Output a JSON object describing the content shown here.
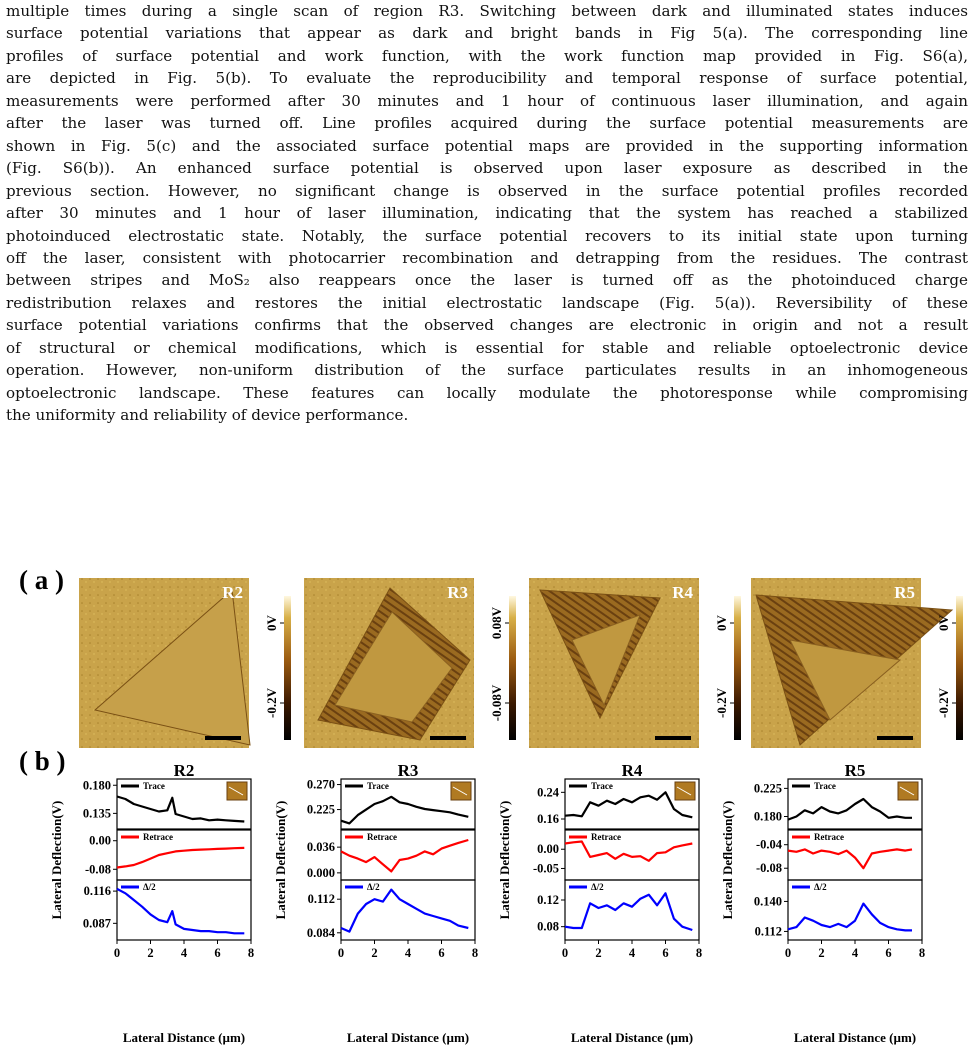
{
  "paragraph_lines": [
    "multiple times during a single scan of region R3. Switching between dark and illuminated states induces",
    "surface potential variations that appear as dark and bright bands in Fig 5(a). The corresponding line",
    "profiles of surface potential and work function, with the work function map provided in Fig. S6(a),",
    "are depicted in Fig. 5(b). To evaluate the reproducibility and temporal response of surface potential,",
    "measurements were performed after 30 minutes and 1 hour of continuous laser illumination, and again",
    "after the laser was turned off. Line profiles acquired during the surface potential measurements are",
    "shown in Fig. 5(c) and the associated surface potential maps are provided in the supporting information",
    "(Fig. S6(b)). An enhanced surface potential is observed upon laser exposure as described in the",
    "previous section. However, no significant change is observed in the surface potential profiles recorded",
    "after 30 minutes and 1 hour of laser illumination, indicating that the system has reached a stabilized",
    "photoinduced electrostatic state. Notably, the surface potential recovers to its initial state upon turning",
    "off the laser, consistent with photocarrier recombination and detrapping from the residues. The contrast",
    "between stripes and MoS₂ also reappears once the laser is turned off as the photoinduced charge",
    "redistribution relaxes and restores the initial electrostatic landscape (Fig. 5(a)). Reversibility of these",
    "surface potential variations confirms that the observed changes are electronic in origin and not a result",
    "of structural or chemical modifications, which is essential for stable and reliable optoelectronic device",
    "operation. However, non-uniform distribution of the surface particulates results in an inhomogeneous",
    "optoelectronic landscape. These features can locally modulate the photoresponse while compromising",
    "the uniformity and reliability of device performance."
  ],
  "figure": {
    "panel_a_label": "( a )",
    "panel_b_label": "( b )",
    "colors": {
      "trace": "#000000",
      "retrace": "#ff0000",
      "delta": "#0000ff",
      "afm_light": "#e0c060",
      "afm_dark": "#000000"
    },
    "maps": [
      {
        "region": "R2",
        "scale_top": "0V",
        "scale_bottom": "-0.2V"
      },
      {
        "region": "R3",
        "scale_top": "0.08V",
        "scale_bottom": "-0.08V"
      },
      {
        "region": "R4",
        "scale_top": "0V",
        "scale_bottom": "-0.2V"
      },
      {
        "region": "R5",
        "scale_top": "0V",
        "scale_bottom": "-0.2V"
      }
    ],
    "ylabel": "Lateral Deflection(V)",
    "xlabel": "Lateral Distance (µm)",
    "legend": {
      "trace": "Trace",
      "retrace": "Retrace",
      "delta": "Δ/2"
    }
  },
  "chart_data": [
    {
      "type": "line",
      "title": "R2",
      "xlabel": "Lateral Distance (µm)",
      "ylabel": "Lateral Deflection(V)",
      "xlim": [
        0,
        8
      ],
      "xticks": [
        "0",
        "2",
        "4",
        "6",
        "8"
      ],
      "subpanels": [
        {
          "name": "Trace",
          "yticks": [
            "0.180",
            "0.135"
          ],
          "ylim": [
            0.11,
            0.19
          ],
          "x": [
            0,
            0.5,
            1,
            1.5,
            2,
            2.5,
            3,
            3.3,
            3.5,
            4,
            4.5,
            5,
            5.5,
            6,
            6.5,
            7,
            7.6
          ],
          "y": [
            0.162,
            0.158,
            0.15,
            0.146,
            0.142,
            0.138,
            0.14,
            0.16,
            0.134,
            0.13,
            0.126,
            0.127,
            0.124,
            0.125,
            0.124,
            0.123,
            0.122
          ]
        },
        {
          "name": "Retrace",
          "yticks": [
            "0.00",
            "-0.08"
          ],
          "ylim": [
            -0.11,
            0.03
          ],
          "x": [
            0,
            0.5,
            1,
            1.5,
            2,
            2.5,
            3,
            3.5,
            4,
            4.5,
            5,
            5.5,
            6,
            6.5,
            7,
            7.6
          ],
          "y": [
            -0.075,
            -0.072,
            -0.068,
            -0.06,
            -0.05,
            -0.04,
            -0.035,
            -0.03,
            -0.028,
            -0.026,
            -0.025,
            -0.024,
            -0.023,
            -0.022,
            -0.021,
            -0.02
          ]
        },
        {
          "name": "Δ/2",
          "yticks": [
            "0.116",
            "0.087"
          ],
          "ylim": [
            0.072,
            0.126
          ],
          "x": [
            0,
            0.5,
            1,
            1.5,
            2,
            2.5,
            3,
            3.3,
            3.5,
            4,
            4.5,
            5,
            5.5,
            6,
            6.5,
            7,
            7.6
          ],
          "y": [
            0.118,
            0.114,
            0.108,
            0.102,
            0.095,
            0.09,
            0.088,
            0.098,
            0.086,
            0.082,
            0.081,
            0.08,
            0.08,
            0.079,
            0.079,
            0.078,
            0.078
          ]
        }
      ]
    },
    {
      "type": "line",
      "title": "R3",
      "xlabel": "Lateral Distance (µm)",
      "ylabel": "Lateral Deflection(V)",
      "xlim": [
        0,
        8
      ],
      "xticks": [
        "0",
        "2",
        "4",
        "6",
        "8"
      ],
      "subpanels": [
        {
          "name": "Trace",
          "yticks": [
            "0.270",
            "0.225"
          ],
          "ylim": [
            0.19,
            0.28
          ],
          "x": [
            0,
            0.5,
            1,
            1.5,
            2,
            2.5,
            3,
            3.5,
            4,
            4.5,
            5,
            5.5,
            6,
            6.5,
            7,
            7.6
          ],
          "y": [
            0.205,
            0.2,
            0.215,
            0.225,
            0.235,
            0.24,
            0.248,
            0.238,
            0.235,
            0.23,
            0.226,
            0.224,
            0.222,
            0.22,
            0.216,
            0.212
          ]
        },
        {
          "name": "Retrace",
          "yticks": [
            "0.036",
            "0.000"
          ],
          "ylim": [
            -0.01,
            0.06
          ],
          "x": [
            0,
            0.5,
            1,
            1.5,
            2,
            2.5,
            3,
            3.5,
            4,
            4.5,
            5,
            5.5,
            6,
            6.5,
            7,
            7.6
          ],
          "y": [
            0.03,
            0.024,
            0.02,
            0.015,
            0.022,
            0.012,
            0.002,
            0.018,
            0.02,
            0.024,
            0.03,
            0.026,
            0.034,
            0.038,
            0.042,
            0.046
          ]
        },
        {
          "name": "Δ/2",
          "yticks": [
            "0.112",
            "0.084"
          ],
          "ylim": [
            0.078,
            0.128
          ],
          "x": [
            0,
            0.5,
            1,
            1.5,
            2,
            2.5,
            3,
            3.5,
            4,
            4.5,
            5,
            5.5,
            6,
            6.5,
            7,
            7.6
          ],
          "y": [
            0.088,
            0.085,
            0.1,
            0.108,
            0.112,
            0.11,
            0.12,
            0.112,
            0.108,
            0.104,
            0.1,
            0.098,
            0.096,
            0.094,
            0.09,
            0.088
          ]
        }
      ]
    },
    {
      "type": "line",
      "title": "R4",
      "xlabel": "Lateral Distance (µm)",
      "ylabel": "Lateral Deflection(V)",
      "xlim": [
        0,
        8
      ],
      "xticks": [
        "0",
        "2",
        "4",
        "6",
        "8"
      ],
      "subpanels": [
        {
          "name": "Trace",
          "yticks": [
            "0.24",
            "0.16"
          ],
          "ylim": [
            0.13,
            0.28
          ],
          "x": [
            0,
            0.5,
            1,
            1.5,
            2,
            2.5,
            3,
            3.5,
            4,
            4.5,
            5,
            5.5,
            6,
            6.5,
            7,
            7.6
          ],
          "y": [
            0.17,
            0.172,
            0.168,
            0.21,
            0.2,
            0.215,
            0.205,
            0.22,
            0.21,
            0.225,
            0.23,
            0.218,
            0.24,
            0.19,
            0.172,
            0.165
          ]
        },
        {
          "name": "Retrace",
          "yticks": [
            "0.00",
            "-0.05"
          ],
          "ylim": [
            -0.08,
            0.05
          ],
          "x": [
            0,
            0.5,
            1,
            1.5,
            2,
            2.5,
            3,
            3.5,
            4,
            4.5,
            5,
            5.5,
            6,
            6.5,
            7,
            7.6
          ],
          "y": [
            0.015,
            0.018,
            0.02,
            -0.02,
            -0.015,
            -0.01,
            -0.025,
            -0.012,
            -0.02,
            -0.018,
            -0.03,
            -0.01,
            -0.008,
            0.005,
            0.01,
            0.015
          ]
        },
        {
          "name": "Δ/2",
          "yticks": [
            "0.12",
            "0.08"
          ],
          "ylim": [
            0.06,
            0.15
          ],
          "x": [
            0,
            0.5,
            1,
            1.5,
            2,
            2.5,
            3,
            3.5,
            4,
            4.5,
            5,
            5.5,
            6,
            6.5,
            7,
            7.6
          ],
          "y": [
            0.08,
            0.078,
            0.078,
            0.115,
            0.108,
            0.112,
            0.105,
            0.115,
            0.11,
            0.122,
            0.128,
            0.112,
            0.13,
            0.092,
            0.08,
            0.075
          ]
        }
      ]
    },
    {
      "type": "line",
      "title": "R5",
      "xlabel": "Lateral Distance (µm)",
      "ylabel": "Lateral Deflection(V)",
      "xlim": [
        0,
        8
      ],
      "xticks": [
        "0",
        "2",
        "4",
        "6",
        "8"
      ],
      "subpanels": [
        {
          "name": "Trace",
          "yticks": [
            "0.225",
            "0.180"
          ],
          "ylim": [
            0.16,
            0.24
          ],
          "x": [
            0,
            0.5,
            1,
            1.5,
            2,
            2.5,
            3,
            3.5,
            4,
            4.5,
            5,
            5.5,
            6,
            6.5,
            7,
            7.4
          ],
          "y": [
            0.175,
            0.18,
            0.19,
            0.185,
            0.195,
            0.188,
            0.185,
            0.19,
            0.2,
            0.208,
            0.195,
            0.188,
            0.178,
            0.18,
            0.178,
            0.178
          ]
        },
        {
          "name": "Retrace",
          "yticks": [
            "-0.04",
            "-0.08"
          ],
          "ylim": [
            -0.1,
            -0.015
          ],
          "x": [
            0,
            0.5,
            1,
            1.5,
            2,
            2.5,
            3,
            3.5,
            4,
            4.5,
            5,
            5.5,
            6,
            6.5,
            7,
            7.4
          ],
          "y": [
            -0.05,
            -0.052,
            -0.048,
            -0.055,
            -0.05,
            -0.052,
            -0.056,
            -0.05,
            -0.062,
            -0.08,
            -0.055,
            -0.052,
            -0.05,
            -0.048,
            -0.05,
            -0.048
          ]
        },
        {
          "name": "Δ/2",
          "yticks": [
            "0.140",
            "0.112"
          ],
          "ylim": [
            0.104,
            0.16
          ],
          "x": [
            0,
            0.5,
            1,
            1.5,
            2,
            2.5,
            3,
            3.5,
            4,
            4.5,
            5,
            5.5,
            6,
            6.5,
            7,
            7.4
          ],
          "y": [
            0.114,
            0.116,
            0.125,
            0.122,
            0.118,
            0.116,
            0.119,
            0.116,
            0.122,
            0.138,
            0.128,
            0.12,
            0.116,
            0.114,
            0.113,
            0.113
          ]
        }
      ]
    }
  ]
}
